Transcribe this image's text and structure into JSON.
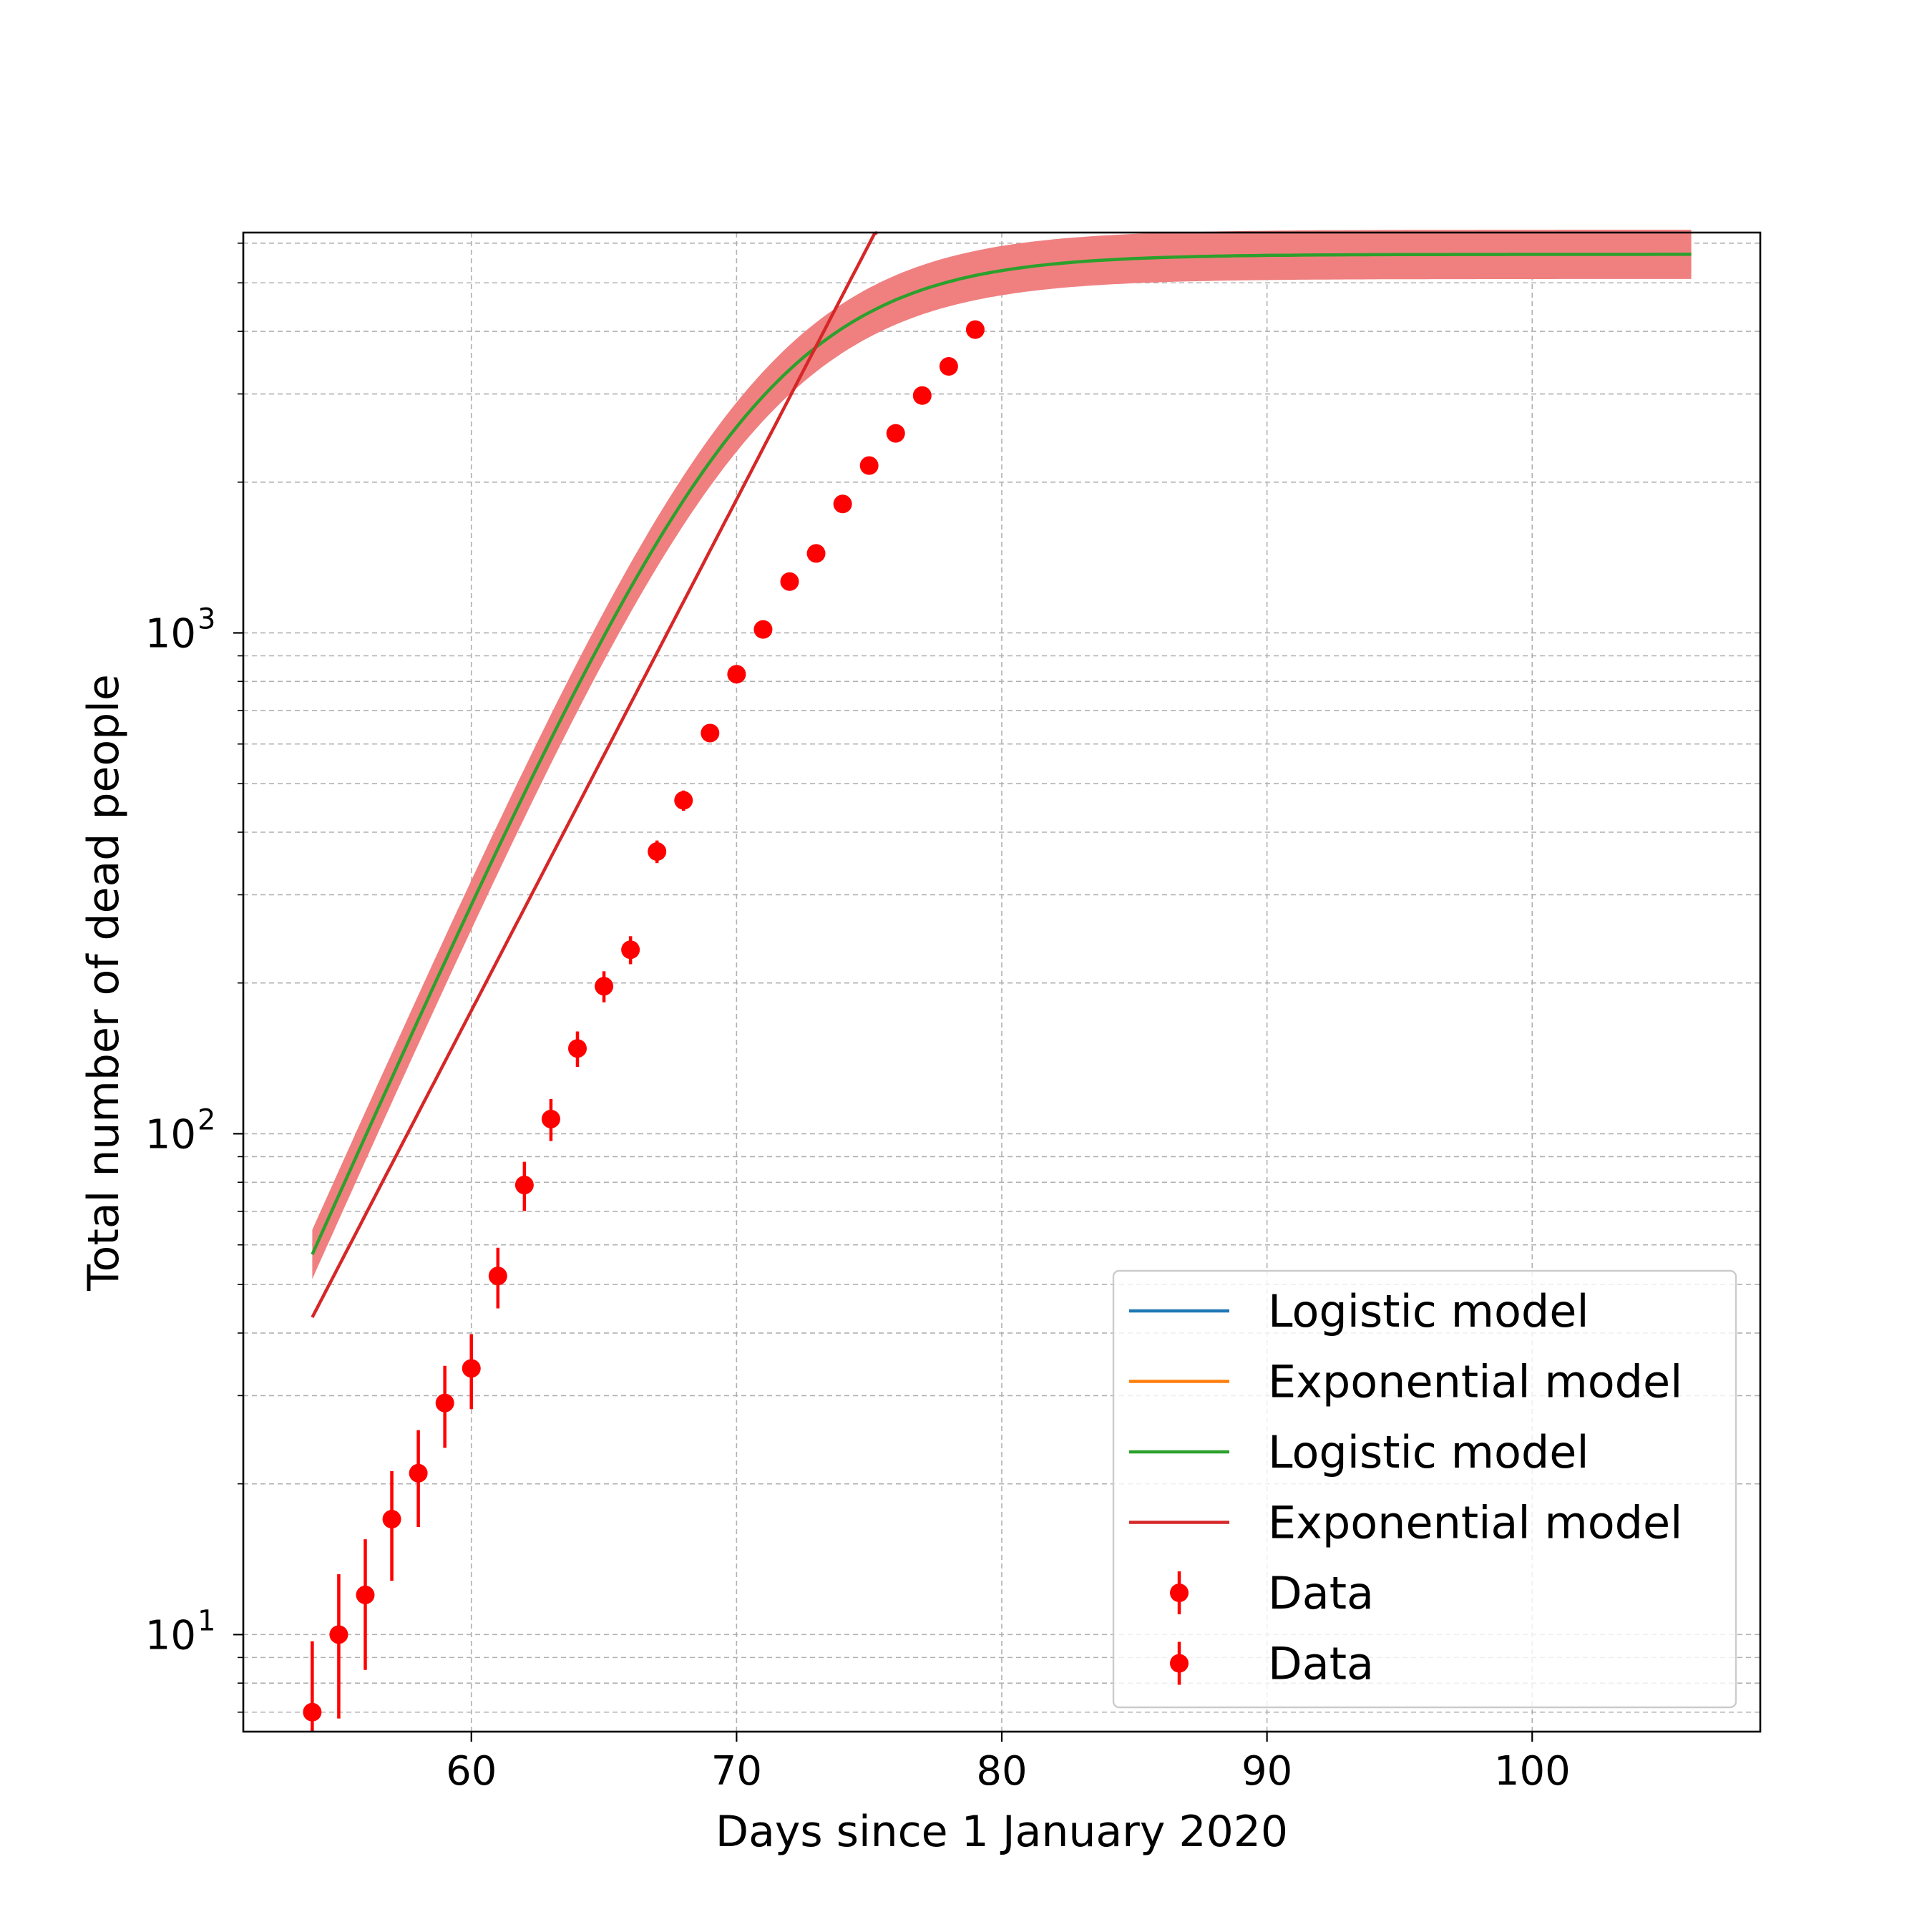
{
  "chart_data": {
    "type": "line",
    "title": "",
    "xlabel": "Days since 1 January 2020",
    "ylabel": "Total number of dead people",
    "xlim": [
      51.4,
      108.6
    ],
    "ylim": [
      6.4,
      6300
    ],
    "yscale": "log",
    "grid": true,
    "grid_minor": true,
    "x_ticks": [
      60,
      70,
      80,
      90,
      100
    ],
    "x_tick_labels": [
      "60",
      "70",
      "80",
      "90",
      "100"
    ],
    "y_ticks": [
      10,
      100,
      1000
    ],
    "y_tick_labels": [
      {
        "base": "10",
        "exp": "1"
      },
      {
        "base": "10",
        "exp": "2"
      },
      {
        "base": "10",
        "exp": "3"
      }
    ],
    "legend_position": "lower right",
    "legend": [
      {
        "label": "Logistic model",
        "color": "#1f77b4",
        "kind": "line"
      },
      {
        "label": "Exponential model",
        "color": "#ff7f0e",
        "kind": "line"
      },
      {
        "label": "Logistic model",
        "color": "#2ca02c",
        "kind": "line"
      },
      {
        "label": "Exponential model",
        "color": "#d62728",
        "kind": "line"
      },
      {
        "label": "Data",
        "color": "#ff0000",
        "kind": "errorbar"
      },
      {
        "label": "Data",
        "color": "#ff0000",
        "kind": "errorbar"
      }
    ],
    "series": [
      {
        "name": "Logistic model",
        "kind": "logistic",
        "color": "#2ca02c",
        "params": {
          "a": 3.64,
          "b": 70.7,
          "c": 5700
        },
        "band_color": "#f08080",
        "band_factor": 1.12,
        "x_range": [
          54,
          106
        ]
      },
      {
        "name": "Exponential model",
        "kind": "exponential",
        "color": "#d62728",
        "params": {
          "x0": 54,
          "y0": 43,
          "rate": 0.235
        },
        "x_range": [
          54,
          81.2
        ]
      },
      {
        "name": "Data",
        "kind": "errorbar",
        "color": "#ff0000",
        "x": [
          54,
          55,
          56,
          57,
          58,
          59,
          60,
          61,
          62,
          63,
          64,
          65,
          66,
          67,
          68,
          69,
          70,
          71,
          72,
          73,
          74,
          75,
          76,
          77,
          78,
          79
        ],
        "y": [
          7,
          10,
          12,
          17,
          21,
          29,
          34,
          52,
          79,
          107,
          148,
          197,
          233,
          366,
          463,
          631,
          827,
          1016,
          1266,
          1441,
          1809,
          2158,
          2503,
          2978,
          3405,
          4032
        ],
        "yerr_low": [
          1.5,
          3.2,
          3.5,
          4.2,
          4.6,
          5.4,
          5.8,
          7.2,
          8.9,
          10.3,
          12,
          14,
          15,
          19,
          21.5,
          25,
          28.8,
          31.9,
          35.6,
          38,
          42.5,
          46.5,
          50,
          54.6,
          58.4,
          63.5
        ],
        "yerr_high": [
          2.7,
          3.2,
          3.5,
          4.2,
          4.6,
          5.4,
          5.8,
          7.2,
          8.9,
          10.3,
          12,
          14,
          15,
          19,
          21.5,
          25,
          28.8,
          31.9,
          35.6,
          38,
          42.5,
          46.5,
          50,
          54.6,
          58.4,
          63.5
        ]
      }
    ]
  }
}
